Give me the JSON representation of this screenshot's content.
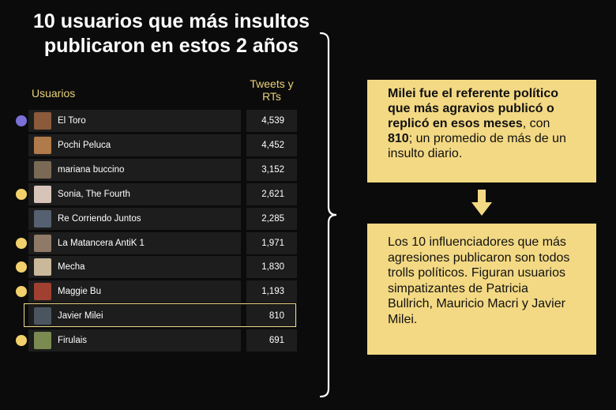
{
  "title_line1": "10 usuarios que más insultos",
  "title_line2": "publicaron en estos 2 años",
  "chart_data": {
    "type": "table",
    "columns": [
      "Usuarios",
      "Tweets y RTs"
    ],
    "rows": [
      {
        "name": "El Toro",
        "value": "4,539",
        "dot": "purple"
      },
      {
        "name": "Pochi Peluca",
        "value": "4,452",
        "dot": null
      },
      {
        "name": "mariana buccino",
        "value": "3,152",
        "dot": null
      },
      {
        "name": "Sonia, The Fourth",
        "value": "2,621",
        "dot": "yellow"
      },
      {
        "name": "Re Corriendo Juntos",
        "value": "2,285",
        "dot": null
      },
      {
        "name": "La Matancera AntiK 1",
        "value": "1,971",
        "dot": "yellow"
      },
      {
        "name": "Mecha",
        "value": "1,830",
        "dot": "yellow"
      },
      {
        "name": "Maggie Bu",
        "value": "1,193",
        "dot": "yellow"
      },
      {
        "name": "Javier Milei",
        "value": "810",
        "dot": null,
        "highlighted": true
      },
      {
        "name": "Firulais",
        "value": "691",
        "dot": "yellow"
      }
    ]
  },
  "col_tweets_line1": "Tweets y",
  "col_tweets_line2": "RTs",
  "box1": {
    "bold": "Milei fue el referente político que más agravios publicó o replicó en esos meses",
    "mid": ", con ",
    "bold_num": "810",
    "rest": "; un promedio de más de un insulto diario."
  },
  "box2": {
    "text": "Los 10 influenciadores que más agresiones publicaron son todos trolls políticos. Figuran usuarios simpatizantes de Patricia Bullrich, Mauricio Macri y Javier Milei."
  },
  "colors": {
    "accent_yellow": "#f3d983",
    "dot_yellow": "#f2d06b",
    "dot_purple": "#7b6fd8",
    "cell_bg": "#1d1d1d"
  }
}
